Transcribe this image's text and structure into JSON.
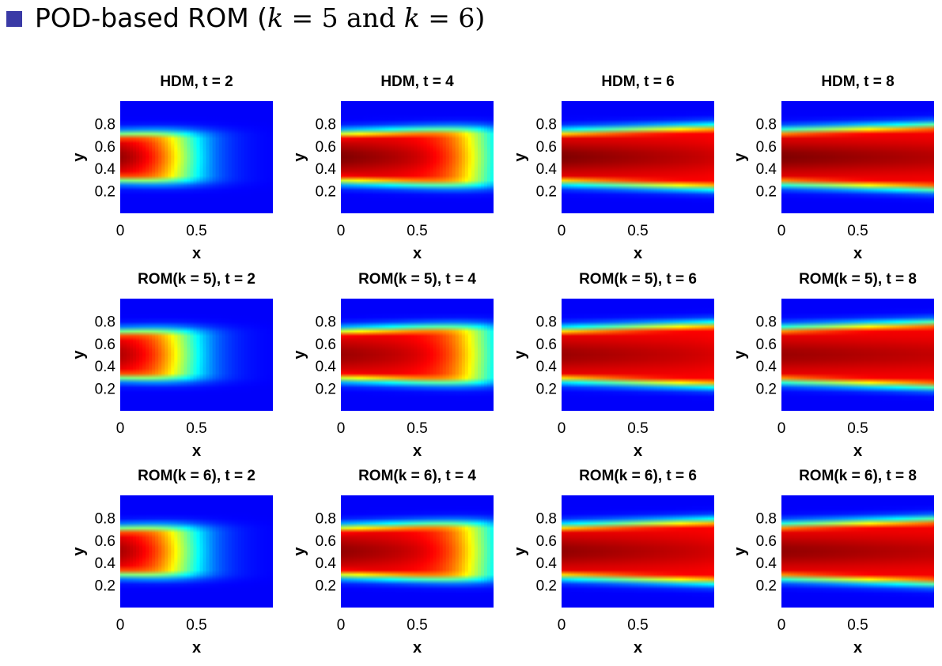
{
  "slide": {
    "bullet_icon": "square-bullet-icon",
    "bullet_color": "#3a3aa6",
    "title": {
      "prefix": "POD-based ROM (",
      "var1": "k",
      "eq1": " = 5 and ",
      "var2": "k",
      "eq2": " = 6)"
    }
  },
  "chart_data": {
    "type": "heatmap",
    "colormap": "jet",
    "layout": "3 rows x 4 columns",
    "xlabel": "x",
    "ylabel": "y",
    "xlim": [
      0,
      1
    ],
    "ylim": [
      0,
      1
    ],
    "xticks": [
      0,
      0.5
    ],
    "xtick_labels": [
      "0",
      "0.5"
    ],
    "yticks": [
      0.2,
      0.4,
      0.6,
      0.8
    ],
    "ytick_labels": [
      "0.2",
      "0.4",
      "0.6",
      "0.8"
    ],
    "rows": [
      {
        "model": "HDM",
        "titles": [
          "HDM, t = 2",
          "HDM, t = 4",
          "HDM, t = 6",
          "HDM, t = 8"
        ]
      },
      {
        "model": "ROM(k = 5)",
        "titles": [
          "ROM(k = 5), t = 2",
          "ROM(k = 5), t = 4",
          "ROM(k = 5), t = 6",
          "ROM(k = 5), t = 8"
        ]
      },
      {
        "model": "ROM(k = 6)",
        "titles": [
          "ROM(k = 6), t = 2",
          "ROM(k = 6), t = 4",
          "ROM(k = 6), t = 6",
          "ROM(k = 6), t = 8"
        ]
      }
    ],
    "times": [
      2,
      4,
      6,
      8
    ]
  }
}
